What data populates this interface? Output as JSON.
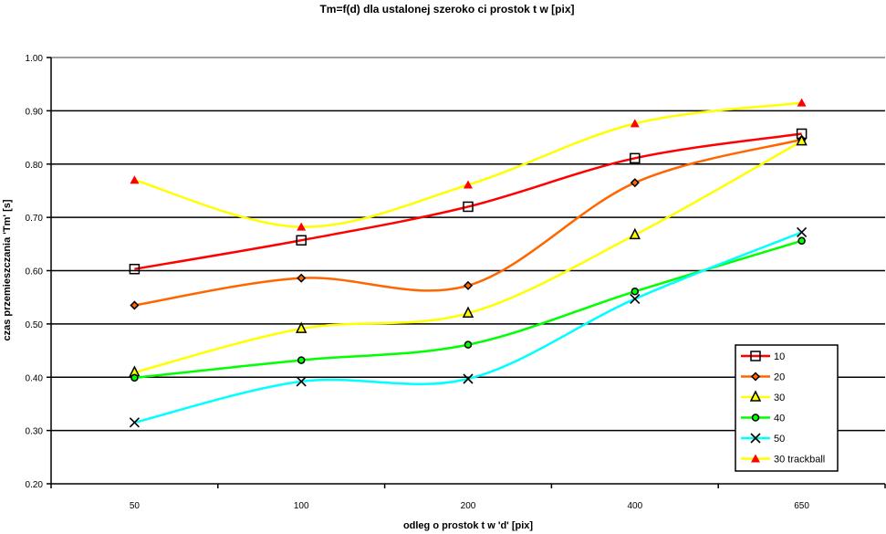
{
  "chart_data": {
    "type": "line",
    "title": "Tm=f(d) dla ustalonej szeroko  ci prostok  t  w [pix]",
    "xlabel": "odleg o    prostok  t  w 'd' [pix]",
    "ylabel": "czas przemieszczania 'Tm' [s]",
    "categories": [
      "50",
      "100",
      "200",
      "400",
      "650"
    ],
    "ylim": [
      0.2,
      1.0
    ],
    "yticks": [
      "0.20",
      "0.30",
      "0.40",
      "0.50",
      "0.60",
      "0.70",
      "0.80",
      "0.90",
      "1.00"
    ],
    "grid": true,
    "legend_position": "bottom-right",
    "series": [
      {
        "name": "10",
        "color": "#ff0000",
        "marker": "square",
        "values": [
          0.603,
          0.657,
          0.72,
          0.811,
          0.857
        ]
      },
      {
        "name": "20",
        "color": "#ff6600",
        "marker": "diamond",
        "values": [
          0.535,
          0.586,
          0.572,
          0.765,
          0.846
        ]
      },
      {
        "name": "30",
        "color": "#ffff00",
        "marker": "triangle",
        "values": [
          0.409,
          0.491,
          0.52,
          0.667,
          0.843
        ]
      },
      {
        "name": "40",
        "color": "#00ff00",
        "marker": "circle",
        "values": [
          0.399,
          0.432,
          0.461,
          0.561,
          0.656
        ]
      },
      {
        "name": "50",
        "color": "#00ffff",
        "marker": "x",
        "values": [
          0.315,
          0.392,
          0.397,
          0.547,
          0.672
        ]
      },
      {
        "name": "30 trackball",
        "color": "#ffff00",
        "marker": "filled-triangle",
        "marker_color": "#ff0000",
        "values": [
          0.77,
          0.682,
          0.761,
          0.876,
          0.915
        ]
      }
    ]
  }
}
